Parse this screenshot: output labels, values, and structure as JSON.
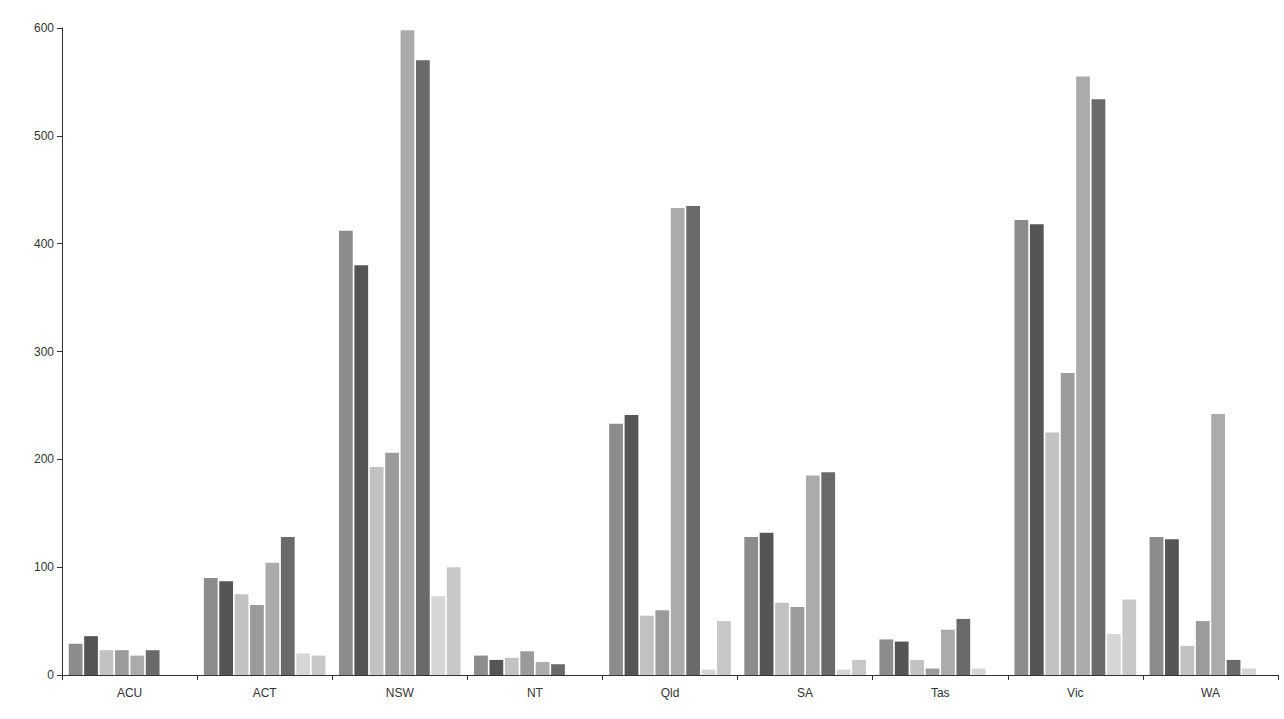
{
  "chart_data": {
    "type": "bar",
    "categories": [
      "ACU",
      "ACT",
      "NSW",
      "NT",
      "Qld",
      "SA",
      "Tas",
      "Vic",
      "WA"
    ],
    "series": [
      {
        "color": "#8c8c8c",
        "values": [
          29,
          90,
          412,
          18,
          233,
          128,
          33,
          422,
          128
        ]
      },
      {
        "color": "#555555",
        "values": [
          36,
          87,
          380,
          14,
          241,
          132,
          31,
          418,
          126
        ]
      },
      {
        "color": "#c2c2c2",
        "values": [
          23,
          75,
          193,
          16,
          55,
          67,
          14,
          225,
          27
        ]
      },
      {
        "color": "#9b9b9b",
        "values": [
          23,
          65,
          206,
          22,
          60,
          63,
          6,
          280,
          50
        ]
      },
      {
        "color": "#ababab",
        "values": [
          18,
          104,
          598,
          12,
          433,
          185,
          42,
          555,
          242
        ]
      },
      {
        "color": "#6a6a6a",
        "values": [
          23,
          128,
          570,
          10,
          435,
          188,
          52,
          534,
          14
        ]
      },
      {
        "color": "#d6d6d6",
        "values": [
          null,
          20,
          73,
          null,
          5,
          5,
          6,
          38,
          6
        ]
      },
      {
        "color": "#c8c8c8",
        "values": [
          null,
          18,
          100,
          null,
          50,
          14,
          null,
          70,
          null
        ]
      }
    ],
    "ylim": [
      0,
      600
    ],
    "yticks": [
      0,
      100,
      200,
      300,
      400,
      500,
      600
    ],
    "grid": false
  }
}
